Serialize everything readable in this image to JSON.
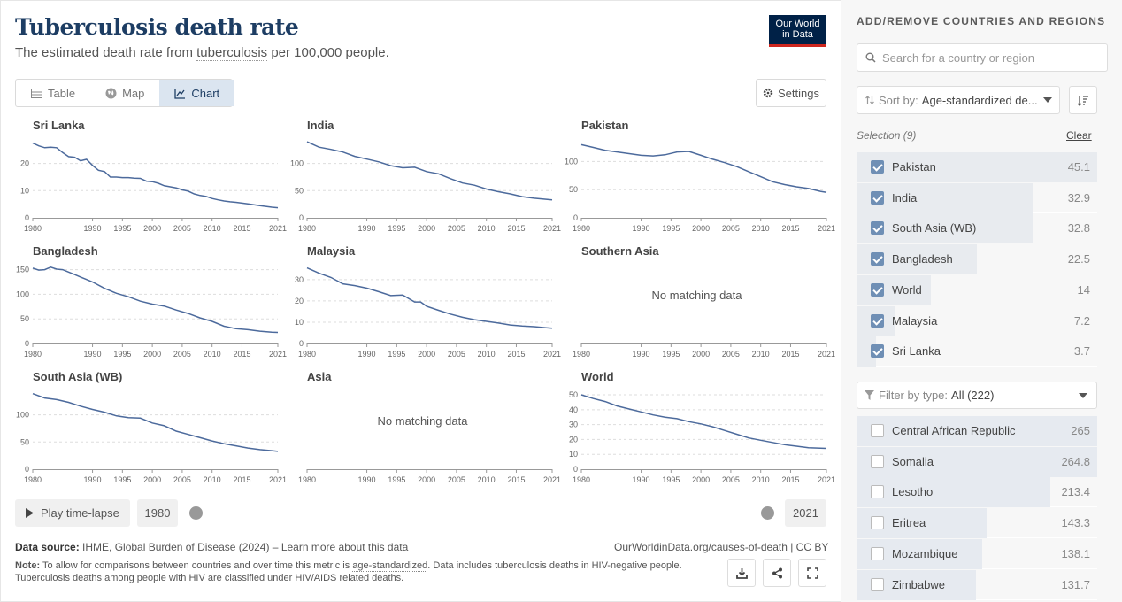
{
  "header": {
    "title": "Tuberculosis death rate",
    "subtitle_pre": "The estimated death rate from ",
    "subtitle_link": "tuberculosis",
    "subtitle_post": " per 100,000 people.",
    "logo_line1": "Our World",
    "logo_line2": "in Data"
  },
  "tabs": [
    {
      "label": "Table",
      "icon": "table-icon"
    },
    {
      "label": "Map",
      "icon": "globe-icon"
    },
    {
      "label": "Chart",
      "icon": "line-chart-icon"
    }
  ],
  "settings_label": "Settings",
  "no_data_label": "No matching data",
  "chart_data": [
    {
      "type": "line",
      "title": "Sri Lanka",
      "xlabel": "",
      "ylabel": "",
      "x_ticks": [
        1980,
        1990,
        1995,
        2000,
        2005,
        2010,
        2015,
        2021
      ],
      "y_ticks": [
        0,
        10,
        20
      ],
      "ylim": [
        0,
        29
      ],
      "xlim": [
        1980,
        2021
      ],
      "x": [
        1980,
        1981,
        1982,
        1983,
        1984,
        1985,
        1986,
        1987,
        1988,
        1989,
        1990,
        1991,
        1992,
        1993,
        1994,
        1995,
        1996,
        1997,
        1998,
        1999,
        2000,
        2001,
        2002,
        2003,
        2004,
        2005,
        2006,
        2007,
        2008,
        2009,
        2010,
        2011,
        2012,
        2013,
        2014,
        2015,
        2016,
        2017,
        2018,
        2019,
        2020,
        2021
      ],
      "values": [
        27.5,
        26.5,
        25.8,
        26,
        25.8,
        24,
        22.5,
        22.3,
        21,
        21.5,
        19.3,
        17.5,
        17,
        15,
        15,
        14.8,
        14.8,
        14.6,
        14.5,
        13.5,
        13.3,
        12.7,
        11.8,
        11.4,
        11,
        10.3,
        9.8,
        8.8,
        8.2,
        7.9,
        7.1,
        6.6,
        6.2,
        5.9,
        5.7,
        5.4,
        5.1,
        4.8,
        4.5,
        4.2,
        3.9,
        3.7
      ]
    },
    {
      "type": "line",
      "title": "India",
      "xlabel": "",
      "ylabel": "",
      "x_ticks": [
        1980,
        1990,
        1995,
        2000,
        2005,
        2010,
        2015,
        2021
      ],
      "y_ticks": [
        0,
        50,
        100
      ],
      "ylim": [
        0,
        145
      ],
      "xlim": [
        1980,
        2021
      ],
      "x": [
        1980,
        1982,
        1984,
        1986,
        1988,
        1990,
        1992,
        1994,
        1996,
        1998,
        2000,
        2002,
        2004,
        2006,
        2008,
        2010,
        2012,
        2014,
        2016,
        2018,
        2020,
        2021
      ],
      "values": [
        140,
        130,
        126,
        121,
        113,
        108,
        103,
        96,
        92,
        93,
        85,
        81,
        72,
        64,
        60,
        53,
        48,
        44,
        39,
        36,
        34,
        32.9
      ]
    },
    {
      "type": "line",
      "title": "Pakistan",
      "xlabel": "",
      "ylabel": "",
      "x_ticks": [
        1980,
        1990,
        1995,
        2000,
        2005,
        2010,
        2015,
        2021
      ],
      "y_ticks": [
        0,
        50,
        100
      ],
      "ylim": [
        0,
        140
      ],
      "xlim": [
        1980,
        2021
      ],
      "x": [
        1980,
        1982,
        1984,
        1986,
        1988,
        1990,
        1992,
        1994,
        1996,
        1998,
        2000,
        2002,
        2004,
        2006,
        2008,
        2010,
        2012,
        2014,
        2016,
        2018,
        2020,
        2021
      ],
      "values": [
        130,
        125,
        120,
        117,
        114,
        111,
        110,
        112,
        117,
        118,
        111,
        104,
        98,
        91,
        82,
        73,
        64,
        59,
        55,
        52,
        47,
        45.1
      ]
    },
    {
      "type": "line",
      "title": "Bangladesh",
      "xlabel": "",
      "ylabel": "",
      "x_ticks": [
        1980,
        1990,
        1995,
        2000,
        2005,
        2010,
        2015,
        2021
      ],
      "y_ticks": [
        0,
        50,
        100,
        150
      ],
      "ylim": [
        0,
        160
      ],
      "xlim": [
        1980,
        2021
      ],
      "x": [
        1980,
        1981,
        1982,
        1983,
        1984,
        1985,
        1986,
        1987,
        1988,
        1989,
        1990,
        1992,
        1994,
        1996,
        1998,
        2000,
        2002,
        2004,
        2006,
        2008,
        2010,
        2012,
        2014,
        2016,
        2018,
        2020,
        2021
      ],
      "values": [
        153,
        149,
        150,
        155,
        151,
        150,
        145,
        140,
        135,
        130,
        125,
        112,
        102,
        95,
        86,
        80,
        76,
        68,
        61,
        52,
        45,
        35,
        30,
        28,
        25,
        23,
        22.5
      ]
    },
    {
      "type": "line",
      "title": "Malaysia",
      "xlabel": "",
      "ylabel": "",
      "x_ticks": [
        1980,
        1990,
        1995,
        2000,
        2005,
        2010,
        2015,
        2021
      ],
      "y_ticks": [
        0,
        10,
        20,
        30
      ],
      "ylim": [
        0,
        37
      ],
      "xlim": [
        1980,
        2021
      ],
      "x": [
        1980,
        1982,
        1984,
        1986,
        1988,
        1990,
        1992,
        1994,
        1996,
        1998,
        1999,
        2000,
        2002,
        2004,
        2006,
        2008,
        2010,
        2012,
        2014,
        2016,
        2018,
        2020,
        2021
      ],
      "values": [
        35.5,
        33,
        31,
        28,
        27.2,
        26,
        24.3,
        22.5,
        22.8,
        19.5,
        19.5,
        17.5,
        15.6,
        13.8,
        12.3,
        11.2,
        10.4,
        9.6,
        8.7,
        8.2,
        7.9,
        7.4,
        7.2
      ]
    },
    {
      "type": "line",
      "title": "Southern Asia",
      "xlabel": "",
      "ylabel": "",
      "x_ticks": [
        1980,
        1990,
        1995,
        2000,
        2005,
        2010,
        2015,
        2021
      ],
      "y_ticks": [],
      "ylim": [
        0,
        1
      ],
      "xlim": [
        1980,
        2021
      ],
      "x": [],
      "values": [],
      "no_data": true
    },
    {
      "type": "line",
      "title": "South Asia (WB)",
      "xlabel": "",
      "ylabel": "",
      "x_ticks": [
        1980,
        1990,
        1995,
        2000,
        2005,
        2010,
        2015,
        2021
      ],
      "y_ticks": [
        0,
        50,
        100
      ],
      "ylim": [
        0,
        145
      ],
      "xlim": [
        1980,
        2021
      ],
      "x": [
        1980,
        1982,
        1984,
        1986,
        1988,
        1990,
        1992,
        1994,
        1996,
        1998,
        2000,
        2002,
        2004,
        2006,
        2008,
        2010,
        2012,
        2014,
        2016,
        2018,
        2020,
        2021
      ],
      "values": [
        139,
        131,
        128,
        123,
        116,
        110,
        105,
        98,
        95,
        94,
        85,
        80,
        70,
        64,
        58,
        52,
        47,
        43,
        39,
        36,
        34,
        32.8
      ]
    },
    {
      "type": "line",
      "title": "Asia",
      "xlabel": "",
      "ylabel": "",
      "x_ticks": [
        1980,
        1990,
        1995,
        2000,
        2005,
        2010,
        2015,
        2021
      ],
      "y_ticks": [],
      "ylim": [
        0,
        1
      ],
      "xlim": [
        1980,
        2021
      ],
      "x": [],
      "values": [],
      "no_data": true
    },
    {
      "type": "line",
      "title": "World",
      "xlabel": "",
      "ylabel": "",
      "x_ticks": [
        1980,
        1990,
        1995,
        2000,
        2005,
        2010,
        2015,
        2021
      ],
      "y_ticks": [
        0,
        10,
        20,
        30,
        40,
        50
      ],
      "ylim": [
        0,
        53
      ],
      "xlim": [
        1980,
        2021
      ],
      "x": [
        1980,
        1982,
        1984,
        1986,
        1988,
        1990,
        1992,
        1994,
        1996,
        1998,
        2000,
        2002,
        2004,
        2006,
        2008,
        2010,
        2012,
        2014,
        2016,
        2018,
        2020,
        2021
      ],
      "values": [
        50,
        47.5,
        45.5,
        42.5,
        40.5,
        38.5,
        36.5,
        35,
        34,
        32,
        30.5,
        28.5,
        26,
        23.5,
        21,
        19.5,
        18,
        16.5,
        15.5,
        14.5,
        14.2,
        14
      ]
    }
  ],
  "timeline": {
    "play_label": "Play time-lapse",
    "start_year": "1980",
    "end_year": "2021"
  },
  "footer": {
    "source_label": "Data source:",
    "source_text": " IHME, Global Burden of Disease (2024) – ",
    "source_link": "Learn more about this data",
    "cite": "OurWorldinData.org/causes-of-death | CC BY",
    "note_label": "Note:",
    "note_pre": " To allow for comparisons between countries and over time this metric is ",
    "note_link": "age-standardized",
    "note_post": ". Data includes tuberculosis deaths in HIV-negative people. Tuberculosis deaths among people with HIV are classified under HIV/AIDS related deaths."
  },
  "sidebar": {
    "heading": "ADD/REMOVE COUNTRIES AND REGIONS",
    "search_placeholder": "Search for a country or region",
    "sort_label": "Sort by:",
    "sort_value": "Age-standardized de...",
    "selection_label": "Selection (9)",
    "clear_label": "Clear",
    "selected": [
      {
        "name": "Pakistan",
        "value": "45.1",
        "frac": 1.0
      },
      {
        "name": "India",
        "value": "32.9",
        "frac": 0.73
      },
      {
        "name": "South Asia (WB)",
        "value": "32.8",
        "frac": 0.73
      },
      {
        "name": "Bangladesh",
        "value": "22.5",
        "frac": 0.5
      },
      {
        "name": "World",
        "value": "14",
        "frac": 0.31
      },
      {
        "name": "Malaysia",
        "value": "7.2",
        "frac": 0.16
      },
      {
        "name": "Sri Lanka",
        "value": "3.7",
        "frac": 0.08
      }
    ],
    "filter_label": "Filter by type:",
    "filter_value": "All (222)",
    "available": [
      {
        "name": "Central African Republic",
        "value": "265",
        "frac": 1.0
      },
      {
        "name": "Somalia",
        "value": "264.8",
        "frac": 0.999
      },
      {
        "name": "Lesotho",
        "value": "213.4",
        "frac": 0.805
      },
      {
        "name": "Eritrea",
        "value": "143.3",
        "frac": 0.541
      },
      {
        "name": "Mozambique",
        "value": "138.1",
        "frac": 0.521
      },
      {
        "name": "Zimbabwe",
        "value": "131.7",
        "frac": 0.497
      }
    ]
  },
  "colors": {
    "line": "#4c6a9c",
    "title": "#1d3d63",
    "grid": "#dddddd",
    "axis": "#999999"
  }
}
